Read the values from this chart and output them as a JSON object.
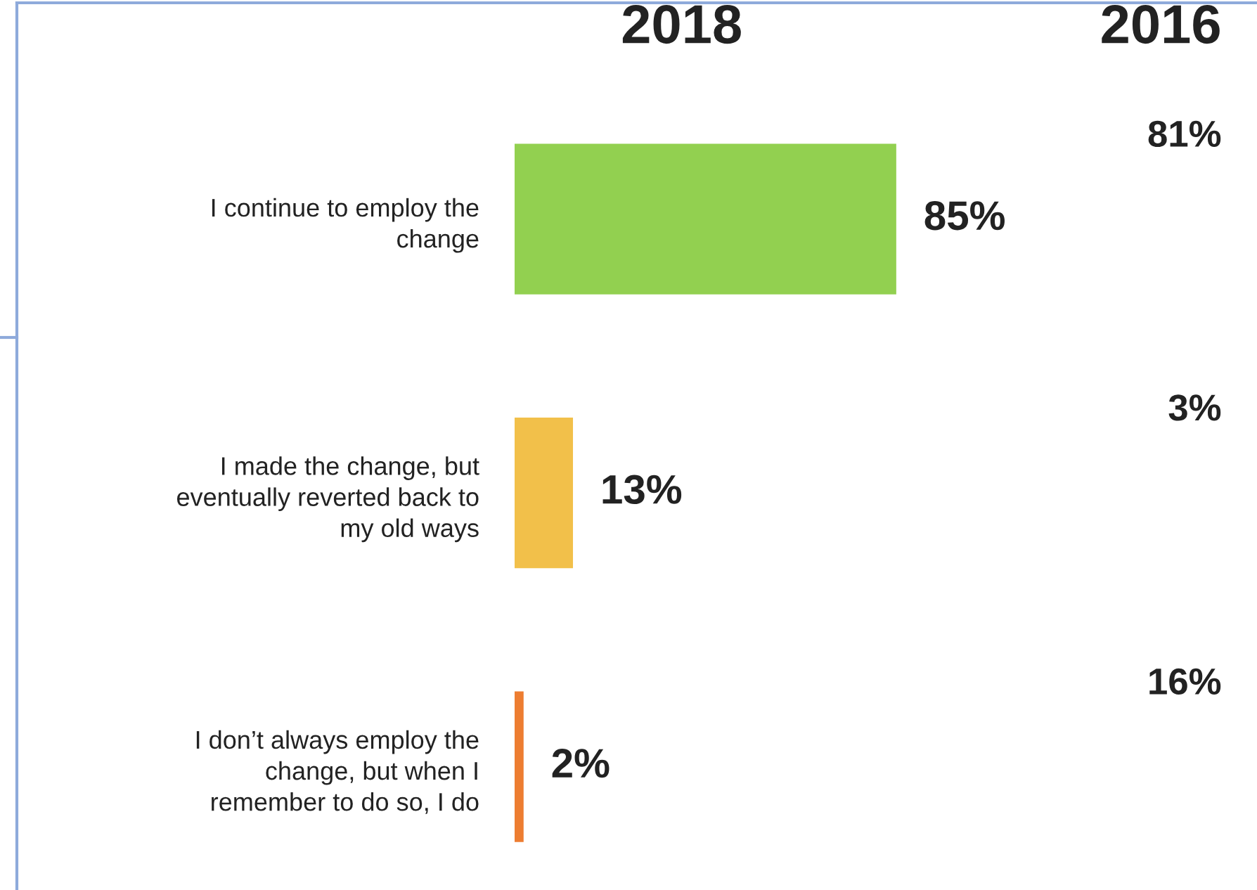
{
  "chart_data": [
    {
      "type": "bar",
      "orientation": "horizontal",
      "title": "2018",
      "categories": [
        "I continue to employ the\nchange",
        "I made the change, but\neventually reverted back to\nmy old ways",
        "I don’t always employ the\nchange, but when I\nremember to do so, I do"
      ],
      "values": [
        85,
        13,
        2
      ],
      "value_labels": [
        "85%",
        "13%",
        "2%"
      ],
      "colors": [
        "#92d050",
        "#f2c04a",
        "#ed7d31"
      ],
      "tick_labels": "y"
    },
    {
      "type": "other",
      "title": "2016",
      "annotations": [
        "81%",
        "3%",
        "16%"
      ]
    }
  ]
}
